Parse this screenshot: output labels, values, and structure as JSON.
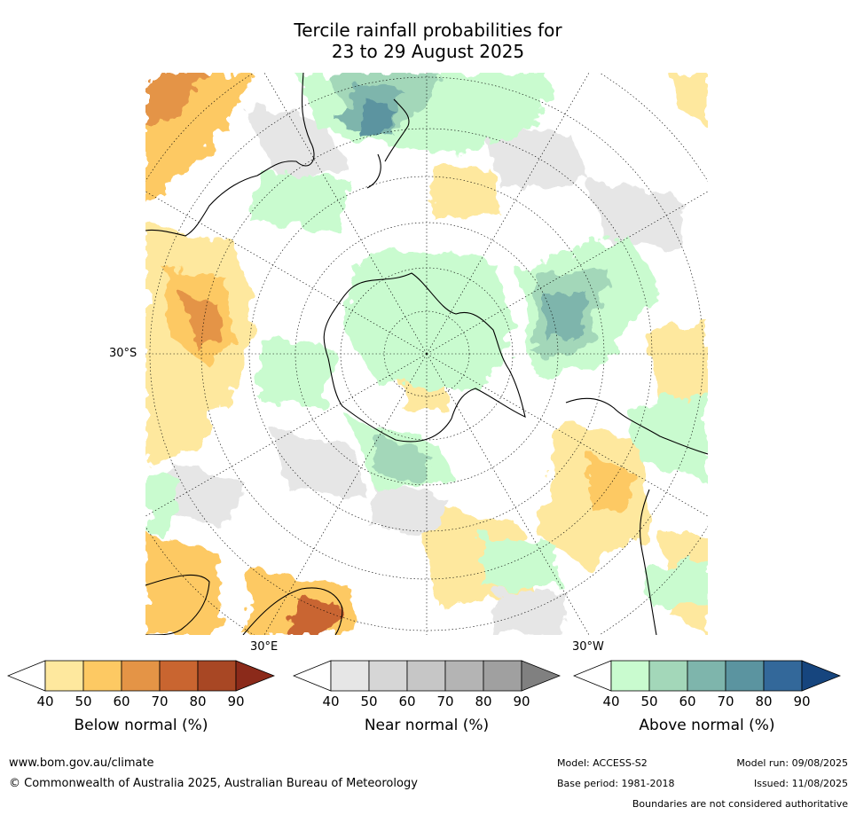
{
  "title": {
    "line1": "Tercile rainfall probabilities for",
    "line2": "23 to 29 August 2025"
  },
  "map": {
    "projection": "south-polar-stereographic",
    "lat_label": "30°S",
    "lon_labels": {
      "east": "30°E",
      "west": "30°W"
    },
    "land_outline_color": "#000000",
    "ocean_color": "#ffffff"
  },
  "colorbars": [
    {
      "id": "below",
      "label": "Below normal (%)",
      "ticks": [
        "40",
        "50",
        "60",
        "70",
        "80",
        "90"
      ],
      "colors": [
        "#ffffff",
        "#fee89e",
        "#fdc963",
        "#e49446",
        "#c96530",
        "#a84724",
        "#8b2a1a"
      ]
    },
    {
      "id": "near",
      "label": "Near normal (%)",
      "ticks": [
        "40",
        "50",
        "60",
        "70",
        "80",
        "90"
      ],
      "colors": [
        "#ffffff",
        "#e6e6e6",
        "#d6d6d6",
        "#c6c6c6",
        "#b4b4b4",
        "#a0a0a0",
        "#808080"
      ]
    },
    {
      "id": "above",
      "label": "Above normal (%)",
      "ticks": [
        "40",
        "50",
        "60",
        "70",
        "80",
        "90"
      ],
      "colors": [
        "#ffffff",
        "#c9fbcf",
        "#a3d7b9",
        "#7eb5ac",
        "#5b94a0",
        "#33689a",
        "#16457e"
      ]
    }
  ],
  "footer": {
    "url": "www.bom.gov.au/climate",
    "copyright": "© Commonwealth of Australia 2025, Australian Bureau of Meteorology",
    "model": "Model: ACCESS-S2",
    "base_period": "Base period: 1981-2018",
    "model_run": "Model run: 09/08/2025",
    "issued": "Issued: 11/08/2025",
    "disclaimer": "Boundaries are not considered authoritative"
  }
}
